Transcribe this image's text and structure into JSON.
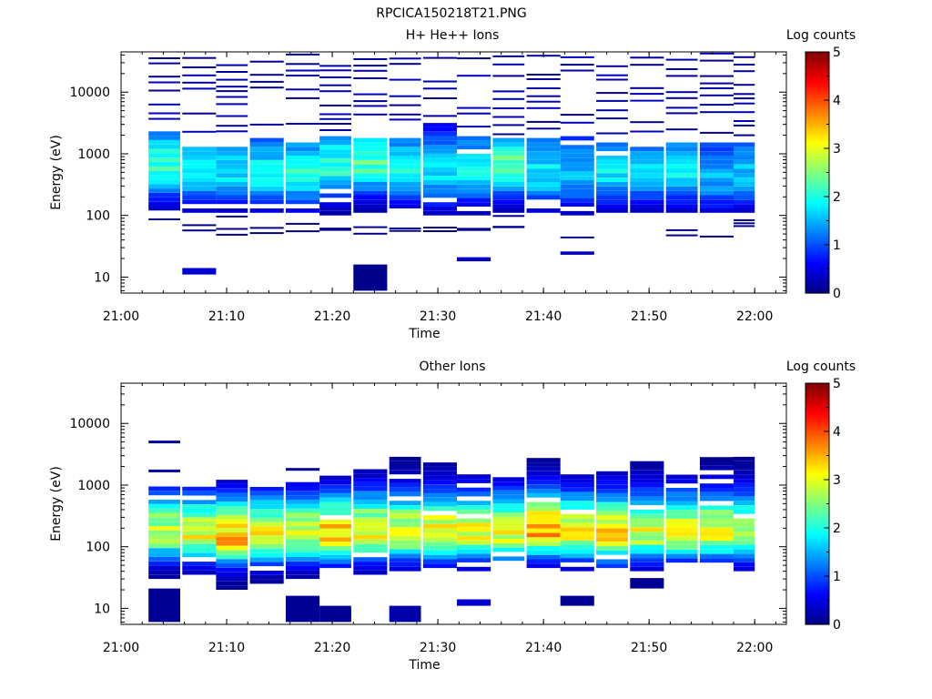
{
  "page_title": "RPCICA150218T21.PNG",
  "chart_data": [
    {
      "type": "heatmap",
      "title": "H+ He++ Ions",
      "xlabel": "Time",
      "ylabel": "Energy (eV)",
      "colorbar_label": "Log counts",
      "colorbar_ticks": [
        "0",
        "1",
        "2",
        "3",
        "4",
        "5"
      ],
      "colorbar_range": [
        0,
        5
      ],
      "x_tick_labels": [
        "21:00",
        "21:10",
        "21:20",
        "21:30",
        "21:40",
        "21:50",
        "22:00"
      ],
      "x_range_minutes": [
        0,
        63
      ],
      "y_tick_labels": [
        "10",
        "100",
        "1000",
        "10000"
      ],
      "y_scale": "log",
      "y_range_eV": [
        5.5,
        45000
      ],
      "time_bins_minutes": [
        [
          2.6,
          5.6
        ],
        [
          5.8,
          9.0
        ],
        [
          9.0,
          12.0
        ],
        [
          12.2,
          15.4
        ],
        [
          15.6,
          18.8
        ],
        [
          18.8,
          21.8
        ],
        [
          22.0,
          25.2
        ],
        [
          25.4,
          28.4
        ],
        [
          28.6,
          31.8
        ],
        [
          31.8,
          35.0
        ],
        [
          35.2,
          38.2
        ],
        [
          38.4,
          41.6
        ],
        [
          41.6,
          44.8
        ],
        [
          45.0,
          48.0
        ],
        [
          48.2,
          51.4
        ],
        [
          51.6,
          54.6
        ],
        [
          54.8,
          58.0
        ],
        [
          58.0,
          60.0
        ]
      ],
      "energy_peak_eV": [
        600,
        500,
        500,
        450,
        450,
        600,
        700,
        500,
        450,
        500,
        600,
        450,
        450,
        500,
        500,
        500,
        400,
        450
      ],
      "energy_core_range_eV": [
        [
          120,
          2500
        ],
        [
          110,
          1800
        ],
        [
          110,
          1600
        ],
        [
          110,
          1700
        ],
        [
          110,
          1800
        ],
        [
          100,
          2000
        ],
        [
          110,
          1900
        ],
        [
          110,
          1800
        ],
        [
          100,
          3000
        ],
        [
          100,
          2000
        ],
        [
          110,
          1700
        ],
        [
          110,
          1900
        ],
        [
          100,
          1800
        ],
        [
          110,
          1600
        ],
        [
          110,
          1600
        ],
        [
          110,
          1500
        ],
        [
          110,
          1600
        ],
        [
          110,
          1600
        ]
      ],
      "peak_log_counts": [
        2.1,
        1.8,
        1.8,
        1.9,
        2.0,
        2.1,
        2.3,
        1.9,
        1.7,
        1.8,
        2.3,
        1.8,
        1.6,
        1.8,
        1.7,
        1.8,
        1.5,
        1.6
      ],
      "low_energy_patches": [
        {
          "t": [
            5.8,
            9.0
          ],
          "e": [
            11,
            14
          ],
          "log_counts": 0.4
        },
        {
          "t": [
            22.0,
            25.2
          ],
          "e": [
            6,
            16
          ],
          "log_counts": 0.05
        },
        {
          "t": [
            31.8,
            35.0
          ],
          "e": [
            18,
            21
          ],
          "log_counts": 0.3
        },
        {
          "t": [
            41.6,
            44.8
          ],
          "e": [
            23,
            26
          ],
          "log_counts": 0.3
        }
      ]
    },
    {
      "type": "heatmap",
      "title": "Other Ions",
      "xlabel": "Time",
      "ylabel": "Energy (eV)",
      "colorbar_label": "Log counts",
      "colorbar_ticks": [
        "0",
        "1",
        "2",
        "3",
        "4",
        "5"
      ],
      "colorbar_range": [
        0,
        5
      ],
      "x_tick_labels": [
        "21:00",
        "21:10",
        "21:20",
        "21:30",
        "21:40",
        "21:50",
        "22:00"
      ],
      "x_range_minutes": [
        0,
        63
      ],
      "y_tick_labels": [
        "10",
        "100",
        "1000",
        "10000"
      ],
      "y_scale": "log",
      "y_range_eV": [
        5.5,
        45000
      ],
      "time_bins_minutes": [
        [
          2.6,
          5.6
        ],
        [
          5.8,
          9.0
        ],
        [
          9.0,
          12.0
        ],
        [
          12.2,
          15.4
        ],
        [
          15.6,
          18.8
        ],
        [
          18.8,
          21.8
        ],
        [
          22.0,
          25.2
        ],
        [
          25.4,
          28.4
        ],
        [
          28.6,
          31.8
        ],
        [
          31.8,
          35.0
        ],
        [
          35.2,
          38.2
        ],
        [
          38.4,
          41.6
        ],
        [
          41.6,
          44.8
        ],
        [
          45.0,
          48.0
        ],
        [
          48.2,
          51.4
        ],
        [
          51.6,
          54.6
        ],
        [
          54.8,
          58.0
        ],
        [
          58.0,
          60.0
        ]
      ],
      "energy_peak_eV": [
        170,
        160,
        140,
        150,
        160,
        160,
        170,
        170,
        170,
        170,
        170,
        180,
        170,
        160,
        170,
        170,
        170,
        170
      ],
      "energy_core_range_eV": [
        [
          30,
          900
        ],
        [
          35,
          1000
        ],
        [
          20,
          1300
        ],
        [
          25,
          1000
        ],
        [
          30,
          1100
        ],
        [
          45,
          1500
        ],
        [
          35,
          1800
        ],
        [
          40,
          2700
        ],
        [
          45,
          2500
        ],
        [
          40,
          1400
        ],
        [
          50,
          1300
        ],
        [
          45,
          2700
        ],
        [
          40,
          1500
        ],
        [
          45,
          1700
        ],
        [
          40,
          2600
        ],
        [
          55,
          2300
        ],
        [
          55,
          2900
        ],
        [
          40,
          2800
        ]
      ],
      "peak_log_counts": [
        2.8,
        3.0,
        3.5,
        3.1,
        3.0,
        3.4,
        3.2,
        3.0,
        3.2,
        3.0,
        3.1,
        3.5,
        3.1,
        3.4,
        3.0,
        3.0,
        3.0,
        2.9
      ],
      "low_energy_patches": [
        {
          "t": [
            2.6,
            5.6
          ],
          "e": [
            6,
            21
          ],
          "log_counts": 0.1
        },
        {
          "t": [
            15.6,
            18.8
          ],
          "e": [
            6,
            16
          ],
          "log_counts": 0.1
        },
        {
          "t": [
            18.8,
            21.8
          ],
          "e": [
            6,
            11
          ],
          "log_counts": 0.1
        },
        {
          "t": [
            25.4,
            28.4
          ],
          "e": [
            6,
            11
          ],
          "log_counts": 0.2
        },
        {
          "t": [
            31.8,
            35.0
          ],
          "e": [
            11,
            14
          ],
          "log_counts": 0.4
        },
        {
          "t": [
            41.6,
            44.8
          ],
          "e": [
            11,
            16
          ],
          "log_counts": 0.1
        },
        {
          "t": [
            48.2,
            51.4
          ],
          "e": [
            21,
            31
          ],
          "log_counts": 0.1
        }
      ],
      "isolated_lines": [
        {
          "t": [
            2.6,
            5.6
          ],
          "e": 5000,
          "log_counts": 0.1
        },
        {
          "t": [
            2.6,
            5.6
          ],
          "e": 1700,
          "log_counts": 0.2
        },
        {
          "t": [
            15.6,
            18.8
          ],
          "e": 1800,
          "log_counts": 0.1
        }
      ]
    }
  ]
}
